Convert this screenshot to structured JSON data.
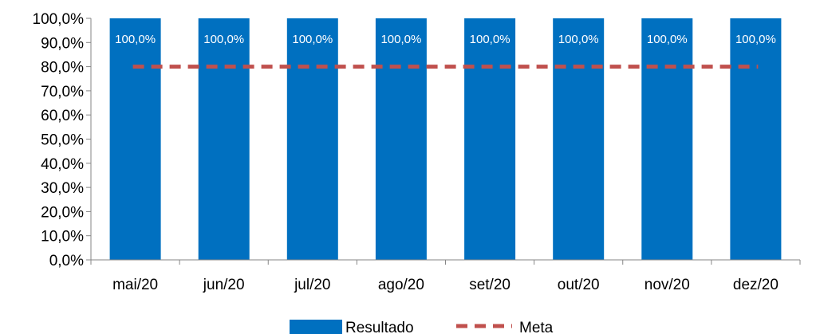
{
  "chart_data": {
    "type": "bar",
    "categories": [
      "mai/20",
      "jun/20",
      "jul/20",
      "ago/20",
      "set/20",
      "out/20",
      "nov/20",
      "dez/20"
    ],
    "series": [
      {
        "name": "Resultado",
        "type": "bar",
        "color": "#0070C0",
        "values": [
          100.0,
          100.0,
          100.0,
          100.0,
          100.0,
          100.0,
          100.0,
          100.0
        ],
        "data_labels": [
          "100,0%",
          "100,0%",
          "100,0%",
          "100,0%",
          "100,0%",
          "100,0%",
          "100,0%",
          "100,0%"
        ]
      },
      {
        "name": "Meta",
        "type": "line",
        "style": "dashed",
        "color": "#C0504D",
        "values": [
          80.0,
          80.0,
          80.0,
          80.0,
          80.0,
          80.0,
          80.0,
          80.0
        ]
      }
    ],
    "ylim": [
      0,
      100
    ],
    "yticks": [
      {
        "value": 0,
        "label": "0,0%"
      },
      {
        "value": 10,
        "label": "10,0%"
      },
      {
        "value": 20,
        "label": "20,0%"
      },
      {
        "value": 30,
        "label": "30,0%"
      },
      {
        "value": 40,
        "label": "40,0%"
      },
      {
        "value": 50,
        "label": "50,0%"
      },
      {
        "value": 60,
        "label": "60,0%"
      },
      {
        "value": 70,
        "label": "70,0%"
      },
      {
        "value": 80,
        "label": "80,0%"
      },
      {
        "value": 90,
        "label": "90,0%"
      },
      {
        "value": 100,
        "label": "100,0%"
      }
    ],
    "grid": false,
    "legend_position": "bottom"
  }
}
